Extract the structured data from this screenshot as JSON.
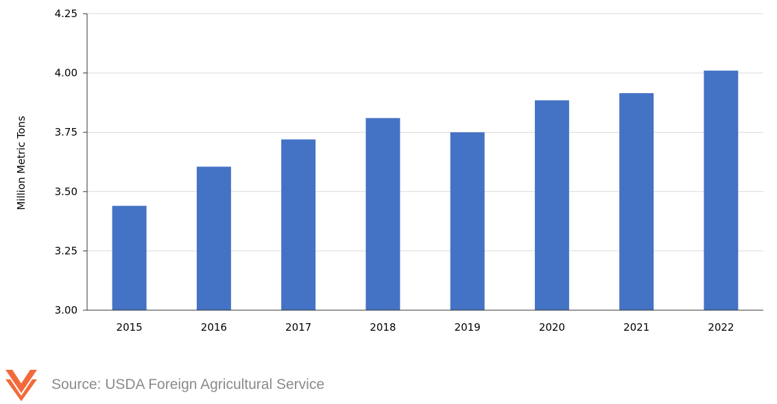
{
  "chart_data": {
    "type": "bar",
    "categories": [
      "2015",
      "2016",
      "2017",
      "2018",
      "2019",
      "2020",
      "2021",
      "2022"
    ],
    "values": [
      3.44,
      3.605,
      3.72,
      3.81,
      3.75,
      3.885,
      3.915,
      4.01
    ],
    "ylabel": "Million Metric Tons",
    "ylim": [
      3.0,
      4.25
    ],
    "yticks": [
      "3.00",
      "3.25",
      "3.50",
      "3.75",
      "4.00",
      "4.25"
    ],
    "grid": true,
    "bar_color": "#4472c4",
    "grid_color": "#d9d9d9"
  },
  "footer": {
    "source": "Source: USDA Foreign Agricultural Service",
    "logo_icon": "chevron-stack-logo-icon",
    "logo_color": "#f26a3b"
  }
}
